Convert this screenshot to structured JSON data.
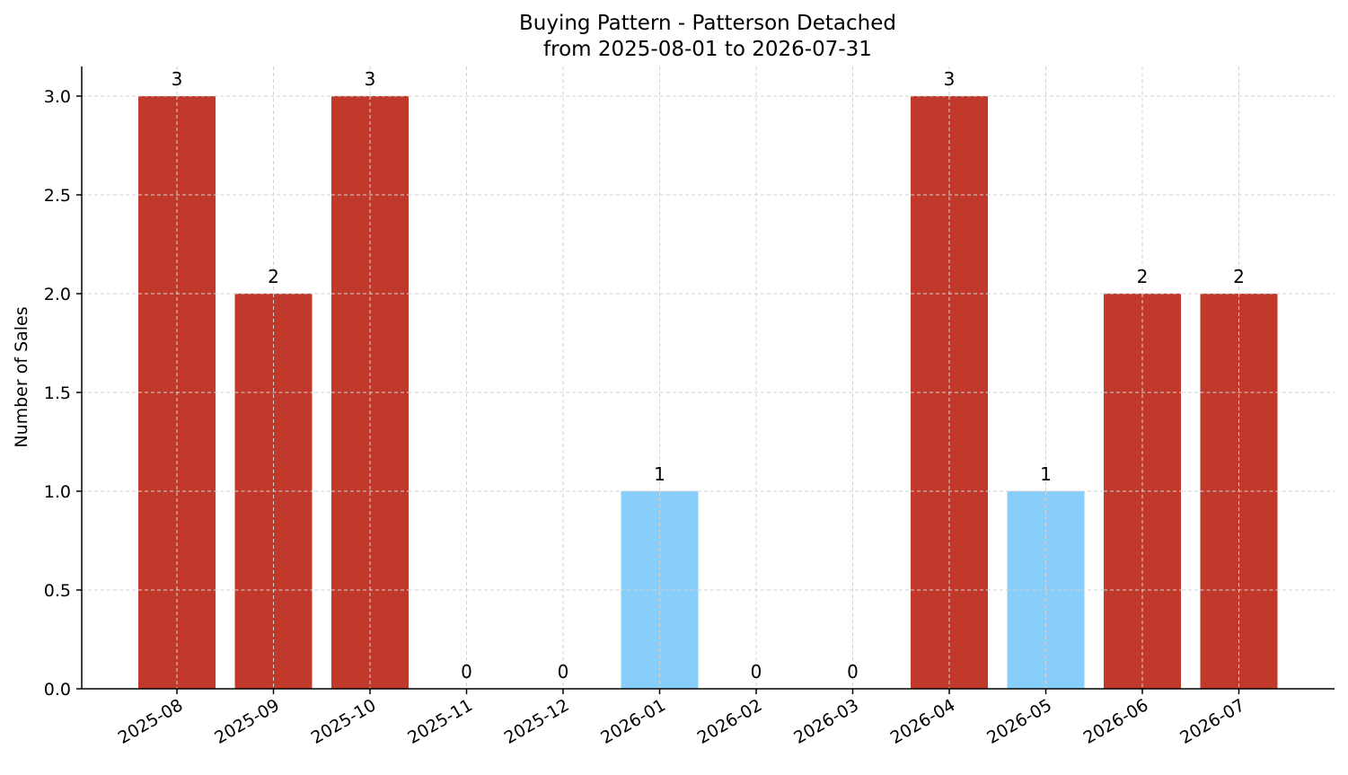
{
  "chart_data": {
    "type": "bar",
    "title_line1": "Buying Pattern - Patterson Detached",
    "title_line2": "from 2025-08-01 to 2026-07-31",
    "xlabel": "",
    "ylabel": "Number of Sales",
    "categories": [
      "2025-08",
      "2025-09",
      "2025-10",
      "2025-11",
      "2025-12",
      "2026-01",
      "2026-02",
      "2026-03",
      "2026-04",
      "2026-05",
      "2026-06",
      "2026-07"
    ],
    "values": [
      3,
      2,
      3,
      0,
      0,
      1,
      0,
      0,
      3,
      1,
      2,
      2
    ],
    "bar_colors": [
      "#c0392b",
      "#c0392b",
      "#c0392b",
      "#c0392b",
      "#c0392b",
      "#87cefa",
      "#c0392b",
      "#c0392b",
      "#c0392b",
      "#87cefa",
      "#c0392b",
      "#c0392b"
    ],
    "ylim": [
      0,
      3.15
    ],
    "yticks": [
      "0.0",
      "0.5",
      "1.0",
      "1.5",
      "2.0",
      "2.5",
      "3.0"
    ],
    "grid": true,
    "legend": "none"
  }
}
